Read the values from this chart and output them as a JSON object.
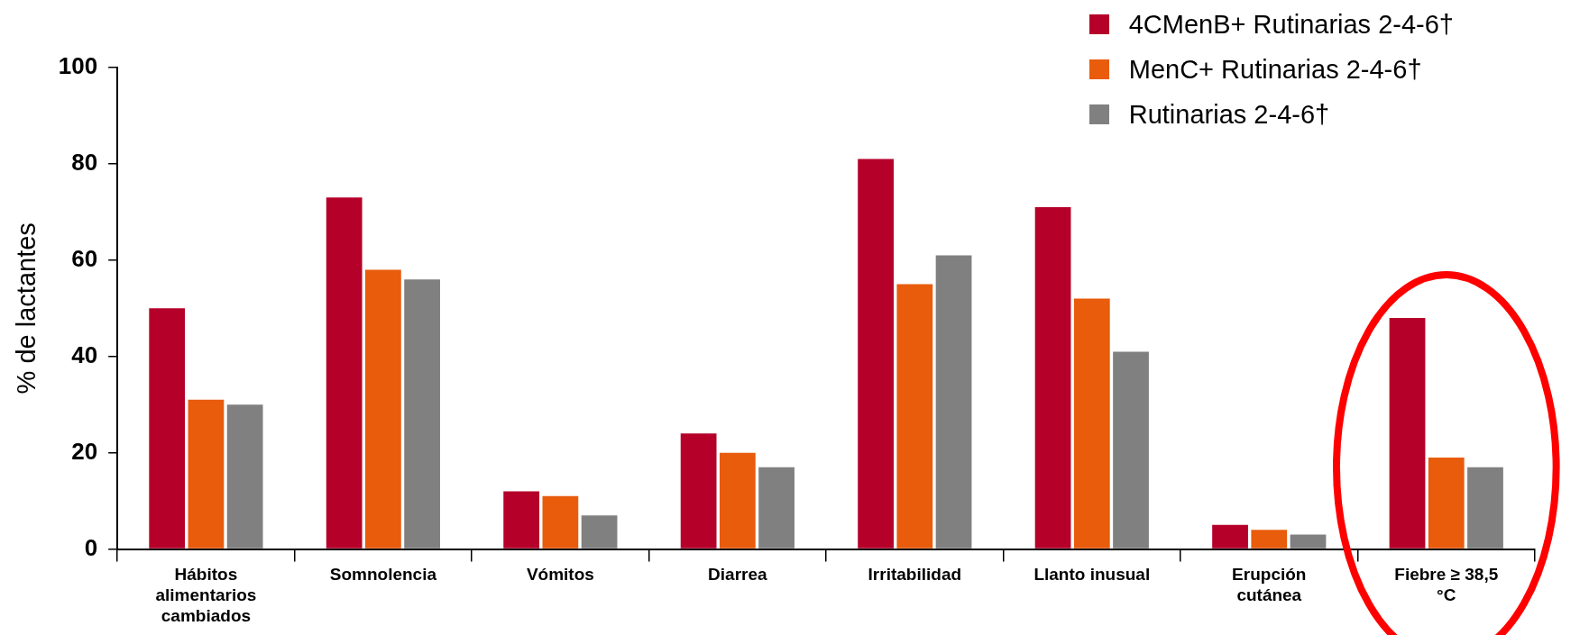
{
  "chart_data": {
    "type": "bar",
    "ylabel": "% de lactantes",
    "categories": [
      "Hábitos alimentarios cambiados",
      "Somnolencia",
      "Vómitos",
      "Diarrea",
      "Irritabilidad",
      "Llanto inusual",
      "Erupción cutánea",
      "Fiebre ≥ 38,5 °C"
    ],
    "series": [
      {
        "name": "4CMenB+ Rutinarias 2-4-6†",
        "color": "#b5002a",
        "values": [
          50,
          73,
          12,
          24,
          81,
          71,
          5,
          48
        ]
      },
      {
        "name": "MenC+ Rutinarias 2-4-6†",
        "color": "#e85c0c",
        "values": [
          31,
          58,
          11,
          20,
          55,
          52,
          4,
          19
        ]
      },
      {
        "name": "Rutinarias 2-4-6†",
        "color": "#808080",
        "values": [
          30,
          56,
          7,
          17,
          61,
          41,
          3,
          17
        ]
      }
    ],
    "ylim": [
      0,
      100
    ],
    "yticks": [
      0,
      20,
      40,
      60,
      80,
      100
    ],
    "grid": false,
    "legend": "top right"
  }
}
